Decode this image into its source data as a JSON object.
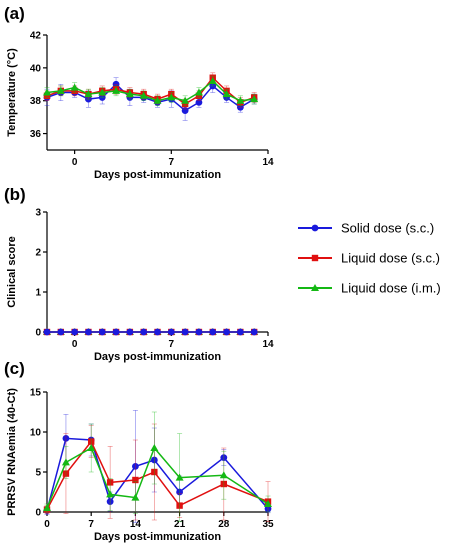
{
  "figure": {
    "panel_labels": [
      "(a)",
      "(b)",
      "(c)"
    ]
  },
  "colors": {
    "solid_sc": "#1a1adc",
    "liquid_sc": "#e01010",
    "liquid_im": "#14b814",
    "axis": "#000000"
  },
  "legend": {
    "placement": "right",
    "entries": [
      {
        "label": "Solid dose (s.c.)",
        "marker": "circle",
        "color": "#1a1adc"
      },
      {
        "label": "Liquid dose  (s.c.)",
        "marker": "square",
        "color": "#e01010"
      },
      {
        "label": "Liquid dose  (i.m.)",
        "marker": "triangle",
        "color": "#14b814"
      }
    ]
  },
  "chart_data": [
    {
      "panel": "(a)",
      "type": "line",
      "xlabel": "Days post-immunization",
      "ylabel": "Temperature (°C)",
      "xlim": [
        -2,
        14
      ],
      "ylim": [
        35,
        42
      ],
      "xticks": [
        0,
        7,
        14
      ],
      "yticks": [
        36,
        38,
        40,
        42
      ],
      "grid": false,
      "x": [
        -2,
        -1,
        0,
        1,
        2,
        3,
        4,
        5,
        6,
        7,
        8,
        9,
        10,
        11,
        12,
        13
      ],
      "series": [
        {
          "name": "Solid dose (s.c.)",
          "marker": "circle",
          "values": [
            38.2,
            38.5,
            38.5,
            38.1,
            38.2,
            39.0,
            38.2,
            38.2,
            37.9,
            38.1,
            37.4,
            37.9,
            38.9,
            38.2,
            37.6,
            38.1
          ],
          "errors": [
            0.5,
            0.5,
            0.3,
            0.5,
            0.4,
            0.4,
            0.5,
            0.3,
            0.3,
            0.5,
            0.6,
            0.3,
            0.4,
            0.3,
            0.3,
            0.3
          ]
        },
        {
          "name": "Liquid dose  (s.c.)",
          "marker": "square",
          "values": [
            38.3,
            38.6,
            38.6,
            38.4,
            38.6,
            38.7,
            38.5,
            38.4,
            38.1,
            38.4,
            37.8,
            38.3,
            39.4,
            38.6,
            37.9,
            38.2
          ],
          "errors": [
            0.3,
            0.3,
            0.3,
            0.3,
            0.3,
            0.3,
            0.3,
            0.3,
            0.3,
            0.3,
            0.3,
            0.3,
            0.3,
            0.3,
            0.3,
            0.3
          ]
        },
        {
          "name": "Liquid dose  (i.m.)",
          "marker": "triangle",
          "values": [
            38.5,
            38.6,
            38.8,
            38.4,
            38.5,
            38.6,
            38.4,
            38.3,
            38.0,
            38.2,
            38.0,
            38.5,
            39.2,
            38.4,
            38.0,
            38.1
          ],
          "errors": [
            0.3,
            0.3,
            0.3,
            0.3,
            0.3,
            0.3,
            0.3,
            0.3,
            0.3,
            0.3,
            0.3,
            0.3,
            0.3,
            0.3,
            0.3,
            0.3
          ]
        }
      ]
    },
    {
      "panel": "(b)",
      "type": "line",
      "xlabel": "Days post-immunization",
      "ylabel": "Clinical score",
      "xlim": [
        -2,
        14
      ],
      "ylim": [
        0,
        3
      ],
      "xticks": [
        0,
        7,
        14
      ],
      "yticks": [
        0,
        1,
        2,
        3
      ],
      "grid": false,
      "x": [
        -2,
        -1,
        0,
        1,
        2,
        3,
        4,
        5,
        6,
        7,
        8,
        9,
        10,
        11,
        12,
        13
      ],
      "series": [
        {
          "name": "Liquid dose  (i.m.)",
          "marker": "triangle",
          "values": [
            0,
            0,
            0,
            0,
            0,
            0,
            0,
            0,
            0,
            0,
            0,
            0,
            0,
            0,
            0,
            0
          ]
        },
        {
          "name": "Liquid dose  (s.c.)",
          "marker": "square",
          "values": [
            0,
            0,
            0,
            0,
            0,
            0,
            0,
            0,
            0,
            0,
            0,
            0,
            0,
            0,
            0,
            0
          ]
        },
        {
          "name": "Solid dose (s.c.)",
          "marker": "circle",
          "values": [
            0,
            0,
            0,
            0,
            0,
            0,
            0,
            0,
            0,
            0,
            0,
            0,
            0,
            0,
            0,
            0
          ]
        }
      ]
    },
    {
      "panel": "(c)",
      "type": "line",
      "xlabel": "Days post-immunization",
      "ylabel": "PRRSV RNAemia (40-Ct)",
      "xlim": [
        0,
        35
      ],
      "ylim": [
        0,
        15
      ],
      "xticks": [
        0,
        7,
        14,
        21,
        28,
        35
      ],
      "yticks": [
        0,
        5,
        10,
        15
      ],
      "grid": false,
      "x": [
        0,
        3,
        7,
        10,
        14,
        17,
        21,
        28,
        35
      ],
      "series": [
        {
          "name": "Solid dose (s.c.)",
          "marker": "circle",
          "values": [
            0.2,
            9.2,
            9.0,
            1.3,
            5.7,
            6.5,
            2.5,
            6.8,
            0.4
          ],
          "errors": [
            0.5,
            3.0,
            2.0,
            1.2,
            7.0,
            4.0,
            2.0,
            1.0,
            0.5
          ]
        },
        {
          "name": "Liquid dose  (s.c.)",
          "marker": "square",
          "values": [
            0.3,
            4.8,
            8.8,
            3.7,
            4.0,
            5.0,
            0.8,
            3.5,
            1.3
          ],
          "errors": [
            0.5,
            5.0,
            2.0,
            4.5,
            5.0,
            6.0,
            1.5,
            4.5,
            2.5
          ]
        },
        {
          "name": "Liquid dose  (i.m.)",
          "marker": "triangle",
          "values": [
            0.5,
            6.2,
            8.0,
            2.2,
            1.8,
            8.0,
            4.3,
            4.6,
            1.0
          ],
          "errors": [
            0.5,
            2.0,
            3.0,
            2.0,
            2.0,
            4.5,
            5.5,
            3.0,
            1.0
          ]
        }
      ]
    }
  ]
}
